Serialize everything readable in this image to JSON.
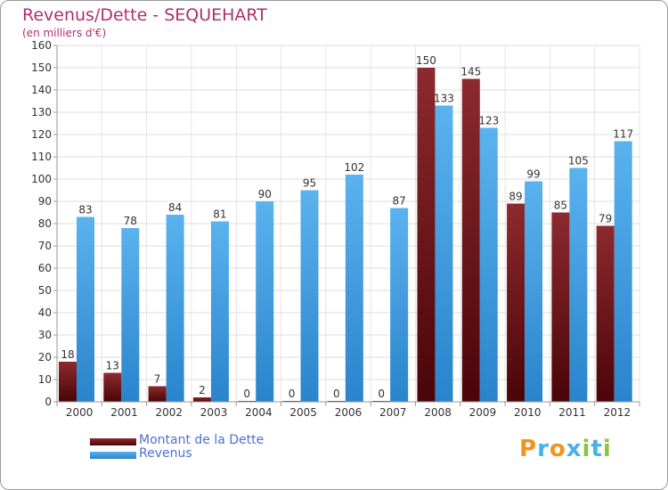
{
  "header": {
    "title": "Revenus/Dette - SEQUEHART",
    "subtitle": "(en milliers d'€)"
  },
  "legend": {
    "items": [
      {
        "label": "Montant de la Dette",
        "color": "#6b0e12"
      },
      {
        "label": "Revenus",
        "color": "#3d9ee6"
      }
    ]
  },
  "logo": {
    "text": "Proxiti",
    "colors": [
      "#f2941d",
      "#4bb0e6",
      "#f2941d",
      "#4bb0e6",
      "#8cc63e",
      "#4bb0e6",
      "#8cc63e"
    ]
  },
  "chart_data": {
    "type": "bar",
    "title": "Revenus/Dette - SEQUEHART",
    "subtitle": "(en milliers d'€)",
    "xlabel": "",
    "ylabel": "",
    "ylim": [
      0,
      160
    ],
    "ytick_step": 10,
    "grid": true,
    "legend_position": "bottom-left",
    "categories": [
      "2000",
      "2001",
      "2002",
      "2003",
      "2004",
      "2005",
      "2006",
      "2007",
      "2008",
      "2009",
      "2010",
      "2011",
      "2012"
    ],
    "series": [
      {
        "name": "Montant de la Dette",
        "color": "#6b0e12",
        "values": [
          18,
          13,
          7,
          2,
          0,
          0,
          0,
          0,
          150,
          145,
          89,
          85,
          79
        ]
      },
      {
        "name": "Revenus",
        "color": "#3d9ee6",
        "values": [
          83,
          78,
          84,
          81,
          90,
          95,
          102,
          87,
          133,
          123,
          99,
          105,
          117
        ]
      }
    ]
  }
}
